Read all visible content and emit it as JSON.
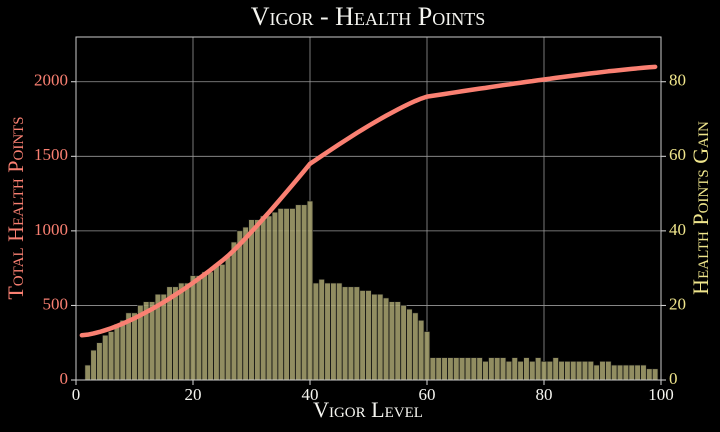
{
  "chart_data": {
    "type": "combo",
    "title": "Vigor - Health Points",
    "x_label": "Vigor Level",
    "y_label": "Total Health Points",
    "y2_label": "Health Points Gain",
    "xlim": [
      0,
      100
    ],
    "xticks": [
      0,
      20,
      40,
      60,
      80,
      100
    ],
    "ylim": [
      0,
      2300
    ],
    "yticks": [
      0,
      500,
      1000,
      1500,
      2000
    ],
    "y2lim": [
      0,
      92
    ],
    "y2ticks": [
      0,
      20,
      40,
      60,
      80
    ],
    "grid": true,
    "y_color": "#fa8072",
    "y2_color": "#f0e68c",
    "series": [
      {
        "type": "bar",
        "axis": "y2",
        "color": "#aaa672",
        "x": [
          2,
          3,
          4,
          5,
          6,
          7,
          8,
          9,
          10,
          11,
          12,
          13,
          14,
          15,
          16,
          17,
          18,
          19,
          20,
          21,
          22,
          23,
          24,
          25,
          26,
          27,
          28,
          29,
          30,
          31,
          32,
          33,
          34,
          35,
          36,
          37,
          38,
          39,
          40,
          41,
          42,
          43,
          44,
          45,
          46,
          47,
          48,
          49,
          50,
          51,
          52,
          53,
          54,
          55,
          56,
          57,
          58,
          59,
          60,
          61,
          62,
          63,
          64,
          65,
          66,
          67,
          68,
          69,
          70,
          71,
          72,
          73,
          74,
          75,
          76,
          77,
          78,
          79,
          80,
          81,
          82,
          83,
          84,
          85,
          86,
          87,
          88,
          89,
          90,
          91,
          92,
          93,
          94,
          95,
          96,
          97,
          98,
          99
        ],
        "values": [
          4,
          8,
          10,
          12,
          13,
          15,
          16,
          18,
          18,
          20,
          21,
          21,
          23,
          23,
          25,
          25,
          26,
          26,
          28,
          28,
          29,
          29,
          31,
          31,
          33,
          37,
          40,
          41,
          43,
          43,
          44,
          44,
          45,
          46,
          46,
          46,
          47,
          47,
          48,
          26,
          27,
          26,
          26,
          26,
          25,
          25,
          25,
          24,
          24,
          23,
          23,
          22,
          21,
          21,
          20,
          19,
          18,
          16,
          13,
          6,
          6,
          6,
          6,
          6,
          6,
          6,
          6,
          6,
          5,
          6,
          6,
          6,
          5,
          6,
          5,
          6,
          5,
          6,
          5,
          5,
          6,
          5,
          5,
          5,
          5,
          5,
          5,
          4,
          5,
          5,
          4,
          4,
          4,
          4,
          4,
          4,
          3,
          3
        ]
      },
      {
        "type": "line",
        "axis": "y",
        "color": "#fa8072",
        "x": [
          1,
          2,
          3,
          4,
          5,
          6,
          7,
          8,
          9,
          10,
          11,
          12,
          13,
          14,
          15,
          16,
          17,
          18,
          19,
          20,
          21,
          22,
          23,
          24,
          25,
          26,
          27,
          28,
          29,
          30,
          31,
          32,
          33,
          34,
          35,
          36,
          37,
          38,
          39,
          40,
          41,
          42,
          43,
          44,
          45,
          46,
          47,
          48,
          49,
          50,
          51,
          52,
          53,
          54,
          55,
          56,
          57,
          58,
          59,
          60,
          61,
          62,
          63,
          64,
          65,
          66,
          67,
          68,
          69,
          70,
          71,
          72,
          73,
          74,
          75,
          76,
          77,
          78,
          79,
          80,
          81,
          82,
          83,
          84,
          85,
          86,
          87,
          88,
          89,
          90,
          91,
          92,
          93,
          94,
          95,
          96,
          97,
          98,
          99
        ],
        "values": [
          300,
          304,
          312,
          322,
          334,
          347,
          362,
          378,
          396,
          414,
          434,
          455,
          476,
          499,
          522,
          547,
          572,
          598,
          624,
          652,
          680,
          709,
          738,
          769,
          800,
          833,
          870,
          910,
          951,
          994,
          1037,
          1081,
          1125,
          1170,
          1216,
          1262,
          1308,
          1355,
          1402,
          1450,
          1476,
          1503,
          1529,
          1555,
          1581,
          1606,
          1631,
          1656,
          1680,
          1704,
          1727,
          1750,
          1772,
          1793,
          1814,
          1834,
          1853,
          1871,
          1887,
          1900,
          1906,
          1912,
          1918,
          1924,
          1930,
          1936,
          1942,
          1948,
          1954,
          1959,
          1965,
          1971,
          1977,
          1982,
          1988,
          1993,
          1999,
          2004,
          2010,
          2015,
          2020,
          2026,
          2031,
          2036,
          2041,
          2046,
          2051,
          2056,
          2060,
          2065,
          2070,
          2074,
          2078,
          2082,
          2086,
          2090,
          2094,
          2097,
          2100
        ]
      }
    ]
  }
}
